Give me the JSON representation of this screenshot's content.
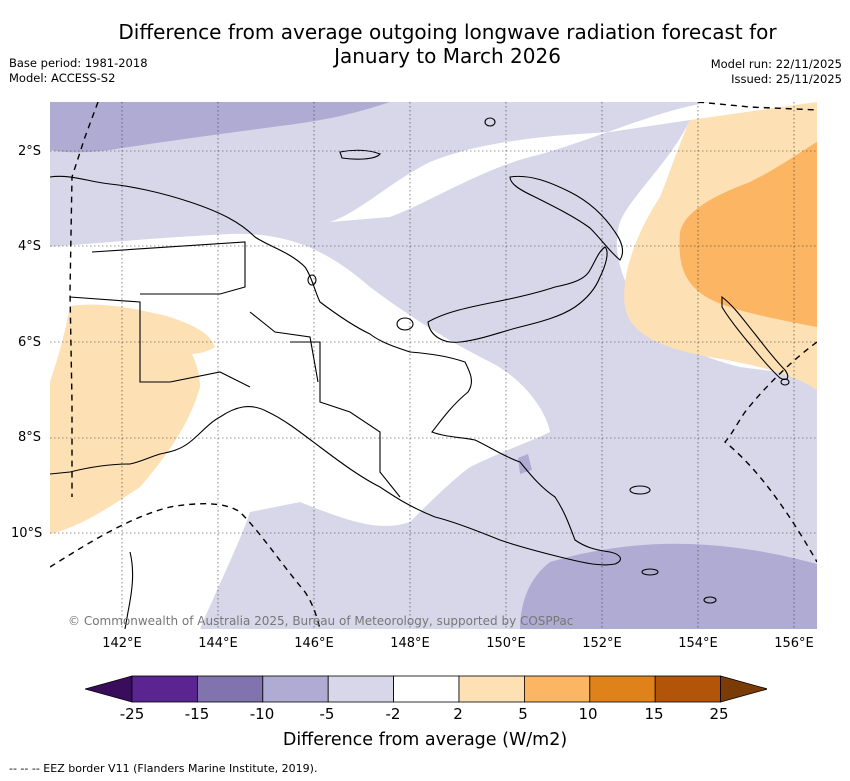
{
  "header": {
    "title_line1": "Difference from average outgoing longwave radiation forecast for",
    "title_line2": "January to March 2026",
    "base_period": "Base period: 1981-2018",
    "model": "Model: ACCESS-S2",
    "model_run": "Model run: 22/11/2025",
    "issued": "Issued: 25/11/2025"
  },
  "axes": {
    "lat_labels": [
      "2°S",
      "4°S",
      "6°S",
      "8°S",
      "10°S"
    ],
    "lon_labels": [
      "142°E",
      "144°E",
      "146°E",
      "148°E",
      "150°E",
      "152°E",
      "154°E",
      "156°E"
    ]
  },
  "credit": "© Commonwealth of Australia 2025, Bureau of Meteorology, supported by COSPPac",
  "colorbar": {
    "ticks": [
      "-25",
      "-15",
      "-10",
      "-5",
      "-2",
      "2",
      "5",
      "10",
      "15",
      "25"
    ],
    "colors": [
      "#3a0d5c",
      "#5a2590",
      "#8173ad",
      "#b0abd3",
      "#d8d7ea",
      "#ffffff",
      "#fde0b4",
      "#fbb563",
      "#e0821a",
      "#b35509",
      "#7a3b06"
    ],
    "title": "Difference from average (W/m2)"
  },
  "legend": "-- --  -- EEZ border V11 (Flanders Marine Institute, 2019)."
}
